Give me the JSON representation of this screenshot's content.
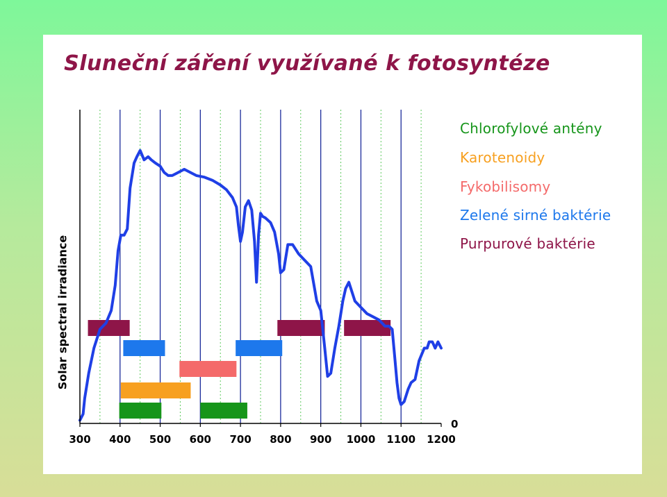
{
  "title": "Sluneční záření využívané k fotosyntéze",
  "colors": {
    "curve": "#1f3fe6",
    "axis_line": "#1a2a9a",
    "grid_dotted": "#5cc85c",
    "title": "#8e1548"
  },
  "chart_data": {
    "type": "line",
    "xlabel": "",
    "ylabel": "Solar spectral irradiance",
    "xlim": [
      300,
      1200
    ],
    "xticks": [
      "300",
      "400",
      "500",
      "600",
      "700",
      "800",
      "900",
      "1000",
      "1100",
      "1200"
    ],
    "ytick_zero": "0",
    "grid": "x-only",
    "legend_position": "right",
    "series": [
      {
        "values_relative": true,
        "x": [
          300,
          308,
          312,
          322,
          335,
          350,
          365,
          378,
          388,
          395,
          402,
          410,
          418,
          425,
          435,
          442,
          450,
          460,
          470,
          478,
          488,
          500,
          510,
          520,
          530,
          545,
          560,
          575,
          590,
          610,
          630,
          650,
          665,
          680,
          690,
          695,
          700,
          705,
          712,
          720,
          728,
          735,
          740,
          745,
          750,
          755,
          762,
          775,
          785,
          795,
          800,
          808,
          818,
          830,
          845,
          860,
          875,
          890,
          900,
          910,
          917,
          925,
          935,
          945,
          955,
          962,
          970,
          985,
          1000,
          1015,
          1030,
          1045,
          1060,
          1070,
          1078,
          1085,
          1090,
          1095,
          1100,
          1108,
          1113,
          1118,
          1125,
          1135,
          1145,
          1158,
          1165,
          1170,
          1178,
          1185,
          1192,
          1200
        ],
        "y": [
          0.01,
          0.03,
          0.08,
          0.16,
          0.24,
          0.3,
          0.32,
          0.36,
          0.44,
          0.55,
          0.6,
          0.6,
          0.62,
          0.75,
          0.83,
          0.85,
          0.87,
          0.84,
          0.85,
          0.84,
          0.83,
          0.82,
          0.8,
          0.79,
          0.79,
          0.8,
          0.81,
          0.8,
          0.79,
          0.785,
          0.775,
          0.76,
          0.745,
          0.72,
          0.69,
          0.63,
          0.58,
          0.61,
          0.69,
          0.71,
          0.68,
          0.58,
          0.45,
          0.6,
          0.67,
          0.66,
          0.655,
          0.64,
          0.61,
          0.54,
          0.48,
          0.49,
          0.57,
          0.57,
          0.54,
          0.52,
          0.5,
          0.39,
          0.36,
          0.24,
          0.15,
          0.16,
          0.24,
          0.31,
          0.39,
          0.43,
          0.45,
          0.39,
          0.37,
          0.35,
          0.34,
          0.33,
          0.31,
          0.31,
          0.3,
          0.2,
          0.13,
          0.08,
          0.06,
          0.07,
          0.09,
          0.11,
          0.13,
          0.14,
          0.2,
          0.24,
          0.24,
          0.26,
          0.26,
          0.24,
          0.26,
          0.24
        ]
      }
    ],
    "bands": [
      {
        "name": "Chlorofylové antény",
        "color": "#16951a",
        "ranges": [
          [
            398,
            503
          ],
          [
            600,
            717
          ]
        ],
        "row": 0
      },
      {
        "name": "Karotenoidy",
        "color": "#f7a020",
        "ranges": [
          [
            402,
            576
          ]
        ],
        "row": 1
      },
      {
        "name": "Fykobilisomy",
        "color": "#f46a6a",
        "ranges": [
          [
            548,
            690
          ]
        ],
        "row": 2
      },
      {
        "name": "Zelené sirné baktérie",
        "color": "#1d78ec",
        "ranges": [
          [
            408,
            512
          ],
          [
            688,
            804
          ]
        ],
        "row": 3
      },
      {
        "name": "Purpurové baktérie",
        "color": "#8e1548",
        "ranges": [
          [
            320,
            424
          ],
          [
            792,
            910
          ],
          [
            958,
            1074
          ]
        ],
        "row": 4
      }
    ]
  },
  "legend": [
    {
      "label": "Chlorofylové antény",
      "color": "#16951a"
    },
    {
      "label": "Karotenoidy",
      "color": "#f7a020"
    },
    {
      "label": "Fykobilisomy",
      "color": "#f46a6a"
    },
    {
      "label": "Zelené sirné baktérie",
      "color": "#1d78ec"
    },
    {
      "label": "Purpurové baktérie",
      "color": "#8e1548"
    }
  ]
}
